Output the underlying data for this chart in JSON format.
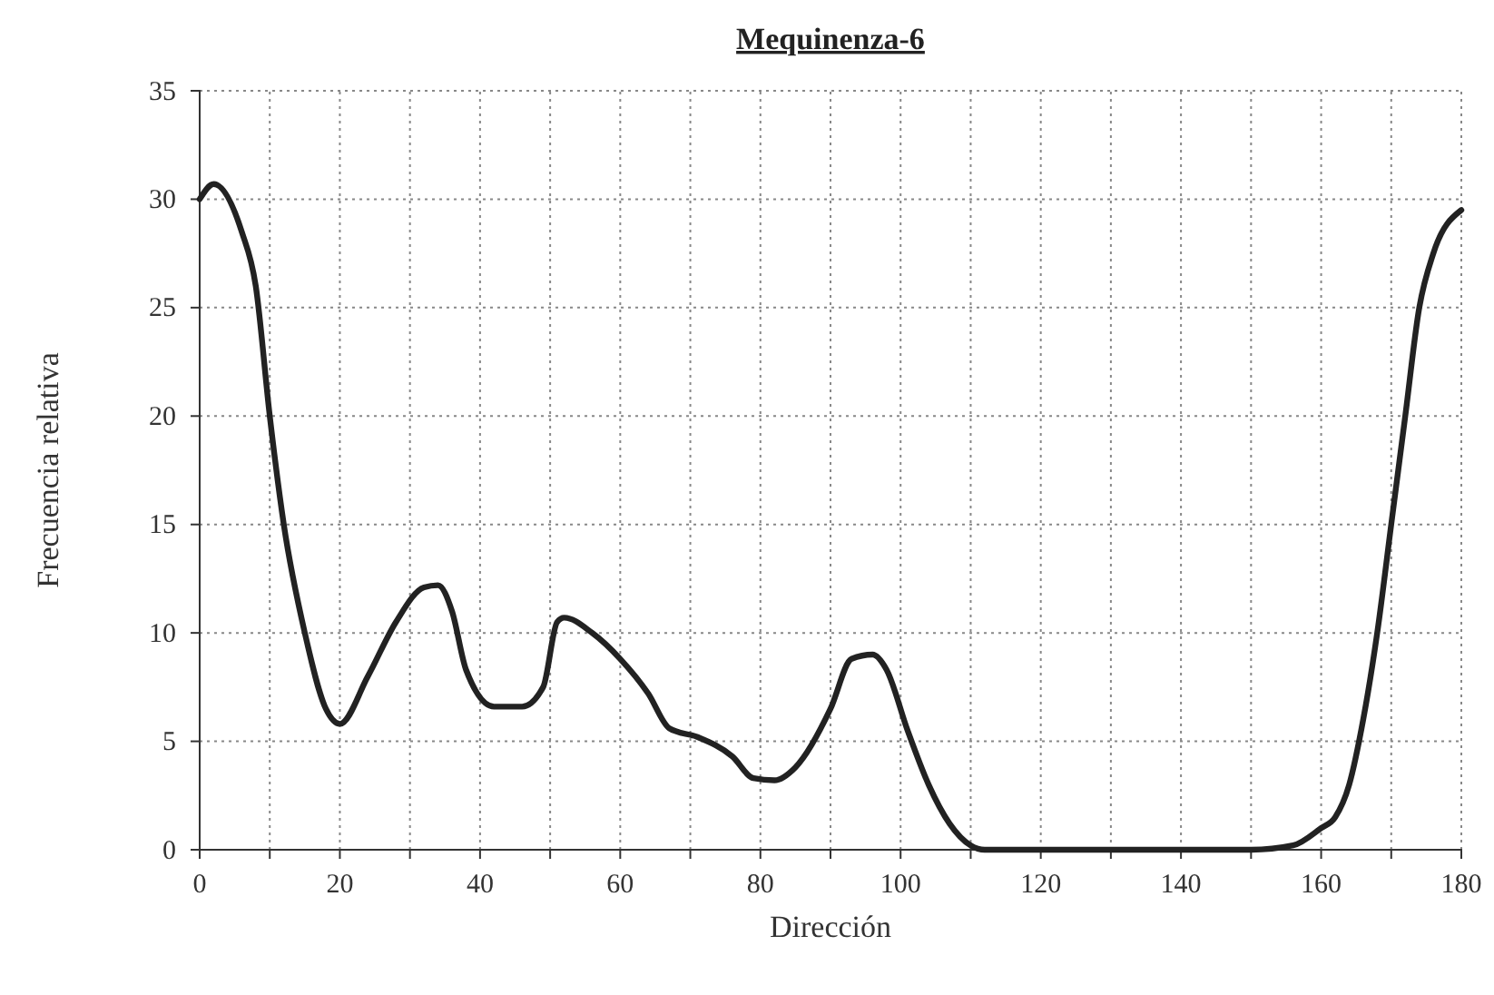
{
  "chart_data": {
    "type": "line",
    "title": "Mequinenza-6",
    "xlabel": "Dirección",
    "ylabel": "Frecuencia relativa",
    "x": [
      0,
      2,
      6,
      8,
      10,
      12,
      15,
      18,
      20,
      24,
      28,
      32,
      34,
      36,
      38,
      42,
      46,
      49,
      51,
      52,
      56,
      60,
      64,
      67,
      71,
      76,
      79,
      82,
      85,
      90,
      93,
      96,
      98,
      101,
      104,
      107,
      110,
      112,
      120,
      130,
      140,
      150,
      156,
      160,
      162,
      164,
      166,
      168,
      170,
      172,
      174,
      176,
      180
    ],
    "series": [
      {
        "color": "#222222",
        "values": [
          30,
          30.7,
          28.5,
          26,
          20,
          15,
          10,
          6.5,
          5.8,
          8,
          10.5,
          12.1,
          12.2,
          11,
          8.3,
          6.6,
          6.6,
          7.5,
          10.5,
          10.7,
          10,
          8.8,
          7.2,
          5.6,
          5.2,
          4.3,
          3.3,
          3.2,
          3.8,
          6.5,
          8.8,
          9,
          8.3,
          5.5,
          3,
          1.2,
          0.2,
          0,
          0,
          0,
          0,
          0,
          0.2,
          1,
          1.5,
          3,
          6,
          10,
          15,
          20,
          25,
          27.5,
          29.5
        ]
      }
    ],
    "xlim": [
      0,
      180
    ],
    "ylim": [
      0,
      35
    ],
    "xticks": [
      0,
      {
        "value": 10,
        "label": null
      },
      20,
      {
        "value": 30,
        "label": null
      },
      40,
      {
        "value": 50,
        "label": null
      },
      60,
      {
        "value": 70,
        "label": null
      },
      80,
      {
        "value": 90,
        "label": null
      },
      100,
      {
        "value": 110,
        "label": null
      },
      120,
      {
        "value": 130,
        "label": null
      },
      140,
      {
        "value": 150,
        "label": null
      },
      160,
      {
        "value": 170,
        "label": null
      },
      180
    ],
    "yticks": [
      0,
      5,
      10,
      15,
      20,
      25,
      30,
      35
    ],
    "grid": true,
    "marker": "none",
    "line_style": "solid"
  }
}
